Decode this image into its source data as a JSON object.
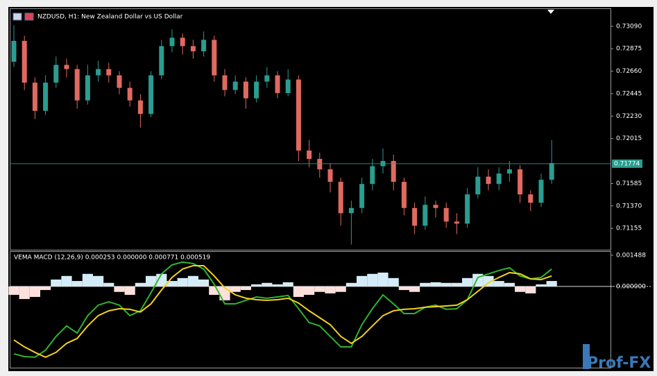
{
  "chart_data": [
    {
      "type": "candlestick",
      "title": "NZDUSD, H1:  New Zealand Dollar vs US Dollar",
      "open": [
        0.7275,
        0.7295,
        0.7255,
        0.7228,
        0.7255,
        0.7272,
        0.7268,
        0.7238,
        0.7262,
        0.7268,
        0.7262,
        0.725,
        0.7238,
        0.7225,
        0.7262,
        0.729,
        0.7298,
        0.729,
        0.7285,
        0.7296,
        0.7262,
        0.7248,
        0.7256,
        0.724,
        0.7256,
        0.7262,
        0.7245,
        0.7258,
        0.719,
        0.7182,
        0.7172,
        0.716,
        0.713,
        0.7135,
        0.7158,
        0.7175,
        0.718,
        0.716,
        0.7135,
        0.7118,
        0.7138,
        0.7135,
        0.7122,
        0.712,
        0.7148,
        0.7165,
        0.7158,
        0.7168,
        0.7172,
        0.7148,
        0.714,
        0.7162
      ],
      "high": [
        0.731,
        0.73,
        0.726,
        0.7262,
        0.728,
        0.7278,
        0.7272,
        0.7272,
        0.7276,
        0.7274,
        0.7266,
        0.7256,
        0.7244,
        0.7266,
        0.7296,
        0.7306,
        0.7302,
        0.7296,
        0.7304,
        0.73,
        0.7268,
        0.7262,
        0.726,
        0.7262,
        0.727,
        0.7266,
        0.7268,
        0.7262,
        0.72,
        0.7188,
        0.7178,
        0.7164,
        0.7142,
        0.7164,
        0.7182,
        0.7192,
        0.7186,
        0.7164,
        0.714,
        0.7146,
        0.7142,
        0.714,
        0.713,
        0.7154,
        0.7174,
        0.7172,
        0.7174,
        0.718,
        0.7176,
        0.7152,
        0.7168,
        0.72
      ],
      "low": [
        0.727,
        0.7248,
        0.722,
        0.7224,
        0.725,
        0.726,
        0.723,
        0.7234,
        0.7256,
        0.7255,
        0.7244,
        0.7232,
        0.7212,
        0.7222,
        0.7258,
        0.7284,
        0.7282,
        0.7278,
        0.728,
        0.7256,
        0.7242,
        0.7244,
        0.723,
        0.7236,
        0.725,
        0.724,
        0.7242,
        0.718,
        0.7174,
        0.7164,
        0.715,
        0.7118,
        0.71,
        0.713,
        0.7152,
        0.7168,
        0.7152,
        0.7128,
        0.711,
        0.7114,
        0.7126,
        0.7116,
        0.711,
        0.7116,
        0.7144,
        0.7152,
        0.7152,
        0.716,
        0.714,
        0.7132,
        0.7136,
        0.7158
      ],
      "close": [
        0.7295,
        0.7255,
        0.7228,
        0.7255,
        0.7272,
        0.7268,
        0.7238,
        0.7262,
        0.7268,
        0.7262,
        0.725,
        0.7238,
        0.7225,
        0.7262,
        0.729,
        0.7298,
        0.729,
        0.7285,
        0.7296,
        0.7262,
        0.7248,
        0.7256,
        0.724,
        0.7256,
        0.7262,
        0.7245,
        0.7258,
        0.719,
        0.7182,
        0.7172,
        0.716,
        0.713,
        0.7135,
        0.7158,
        0.7175,
        0.718,
        0.716,
        0.7135,
        0.7118,
        0.7138,
        0.7135,
        0.7122,
        0.712,
        0.7148,
        0.7165,
        0.7158,
        0.7168,
        0.7172,
        0.7148,
        0.714,
        0.7162,
        0.7178
      ],
      "up_color": "#2a9d8f",
      "down_color": "#e06a60",
      "ylim": [
        0.7095,
        0.73255
      ],
      "yticks": [
        {
          "value": 0.7309,
          "label": "0.73090"
        },
        {
          "value": 0.72875,
          "label": "0.72875"
        },
        {
          "value": 0.7266,
          "label": "0.72660"
        },
        {
          "value": 0.72445,
          "label": "0.72445"
        },
        {
          "value": 0.7223,
          "label": "0.72230"
        },
        {
          "value": 0.72015,
          "label": "0.72015"
        },
        {
          "value": 0.71585,
          "label": "0.71585"
        },
        {
          "value": 0.7137,
          "label": "0.71370"
        },
        {
          "value": 0.71155,
          "label": "0.71155"
        }
      ],
      "price_line": {
        "value": 0.71774,
        "label": "0.71774"
      },
      "price_line_color": "#2a9d8f"
    },
    {
      "type": "macd",
      "title": "VEMA MACD (12,26,9) 0.000253 0.000000 0.000771 0.000519",
      "histogram": [
        -0.0004,
        -0.0006,
        -0.0005,
        -0.00017,
        0.00033,
        0.0005,
        0.00026,
        0.0006,
        0.0005,
        0.00017,
        -0.00026,
        -0.0004,
        0.00017,
        0.0005,
        0.0006,
        0.00026,
        0.0004,
        0.0005,
        0.00033,
        -0.0004,
        -0.00066,
        -0.00026,
        -0.00017,
        0.0001,
        0.00017,
        0.0001,
        0.0002,
        -0.0005,
        -0.0004,
        -0.00026,
        -0.00033,
        -0.00026,
        0.00017,
        0.0005,
        0.0006,
        0.00066,
        0.0004,
        -0.00017,
        -0.00026,
        0.00017,
        0.0002,
        0.00017,
        0.00017,
        0.0004,
        0.0006,
        0.0005,
        0.00026,
        0.00017,
        -0.00026,
        -0.00033,
        0.0001,
        0.00026
      ],
      "positive_color": "#d4ecf7",
      "negative_color": "#fde0dc",
      "series": [
        {
          "color": "#2fb52f",
          "values": [
            -0.00321,
            -0.00334,
            -0.00337,
            -0.00304,
            -0.00238,
            -0.00188,
            -0.00222,
            -0.00139,
            -0.00089,
            -0.00073,
            -0.00089,
            -0.00139,
            -0.00116,
            -0.0003,
            0.0006,
            0.00103,
            0.00116,
            0.00109,
            0.00083,
            0.0001,
            -0.00083,
            -0.00083,
            -0.00066,
            -0.0005,
            -0.00056,
            -0.0005,
            -0.00043,
            -0.00106,
            -0.00172,
            -0.00188,
            -0.00238,
            -0.00288,
            -0.00288,
            -0.00182,
            -0.00106,
            -0.0004,
            -0.00083,
            -0.00129,
            -0.00129,
            -0.00099,
            -0.00089,
            -0.00109,
            -0.00106,
            -0.00063,
            0.00043,
            0.0006,
            0.00076,
            0.00089,
            0.0005,
            0.00036,
            0.00043,
            0.00083
          ]
        },
        {
          "color": "#f2d21b",
          "values": [
            -0.00255,
            -0.00288,
            -0.00314,
            -0.00337,
            -0.00314,
            -0.00271,
            -0.00248,
            -0.00188,
            -0.00139,
            -0.00116,
            -0.00106,
            -0.00109,
            -0.00122,
            -0.00083,
            -0.00017,
            0.00043,
            0.00083,
            0.00099,
            0.00099,
            0.0005,
            -7e-05,
            -0.0004,
            -0.00056,
            -0.00063,
            -0.00066,
            -0.00063,
            -0.00056,
            -0.00079,
            -0.00116,
            -0.00149,
            -0.00182,
            -0.00238,
            -0.00271,
            -0.00238,
            -0.00188,
            -0.00139,
            -0.00116,
            -0.00109,
            -0.00106,
            -0.00099,
            -0.00096,
            -0.00093,
            -0.00089,
            -0.00063,
            -0.00023,
            0.00017,
            0.00043,
            0.00066,
            0.0006,
            0.00036,
            0.00033,
            0.0005
          ]
        }
      ],
      "ylim": [
        -0.00387,
        0.00165
      ],
      "yticks": [
        0.001488,
        {
          "value": 0,
          "label": "0.000000"
        }
      ]
    }
  ],
  "watermark": "Prof-FX"
}
